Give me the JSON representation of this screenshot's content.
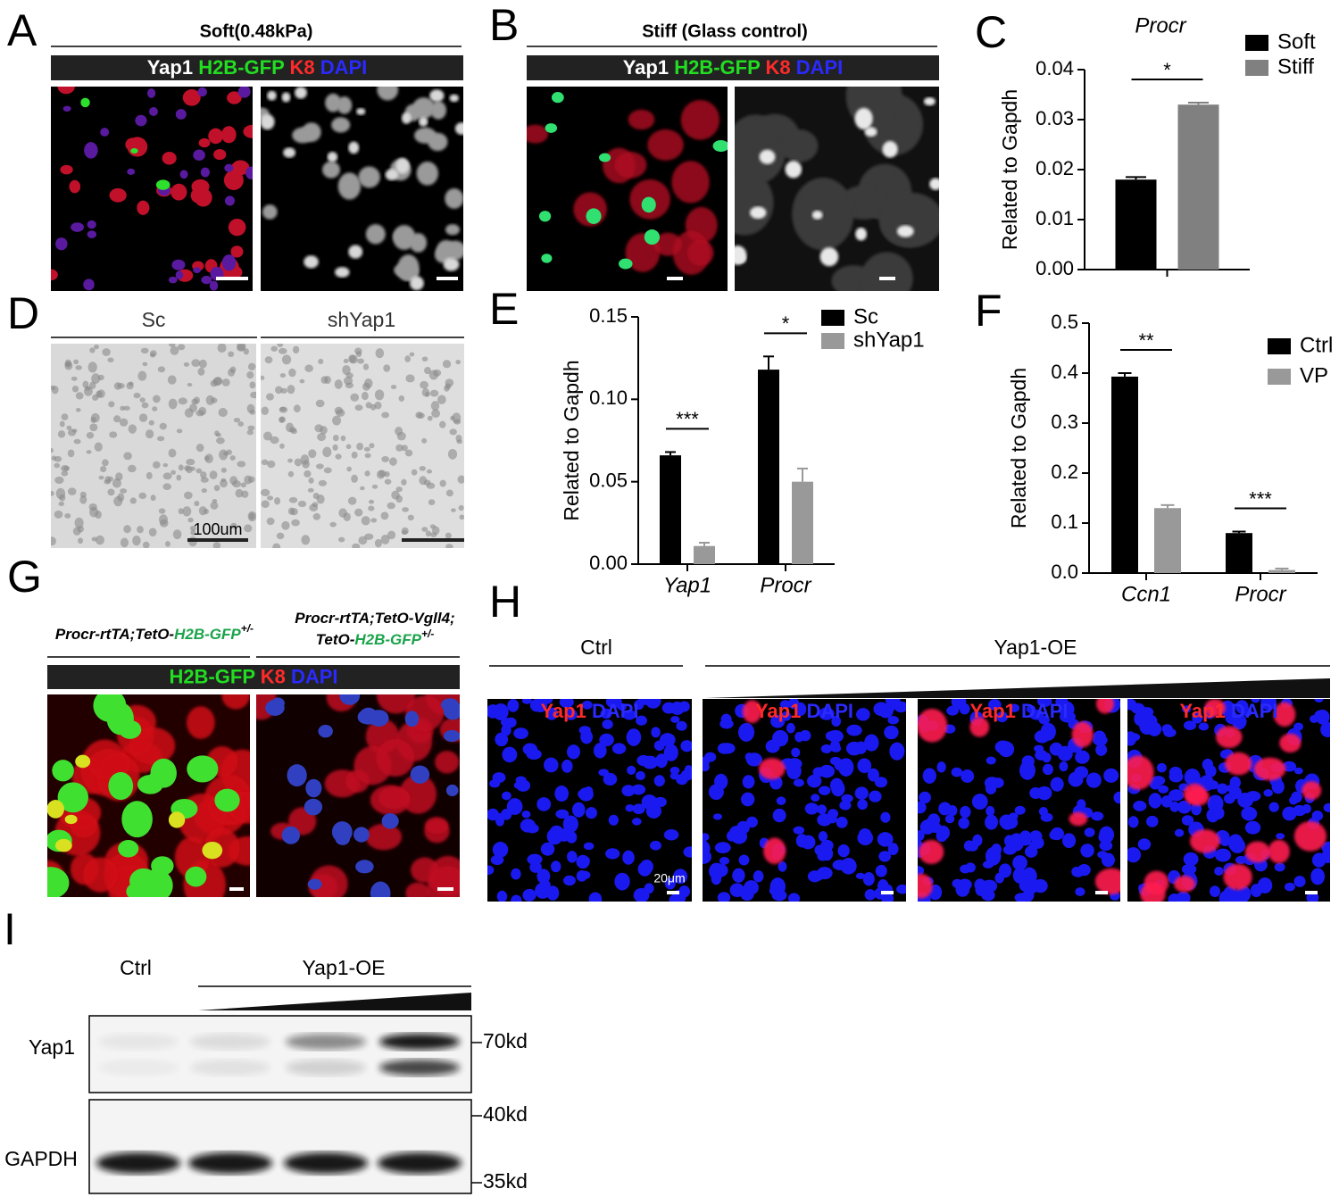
{
  "panel_labels": [
    "A",
    "B",
    "C",
    "D",
    "E",
    "F",
    "G",
    "H",
    "I"
  ],
  "panel_a": {
    "title": "Soft(0.48kPa)",
    "stains": [
      {
        "text": "Yap1",
        "color": "#ffffff"
      },
      {
        "text": "H2B-GFP",
        "color": "#22dd22"
      },
      {
        "text": "K8",
        "color": "#ff2a2a"
      },
      {
        "text": "DAPI",
        "color": "#2a2aff"
      }
    ]
  },
  "panel_b": {
    "title": "Stiff (Glass control)",
    "stains": [
      {
        "text": "Yap1",
        "color": "#ffffff"
      },
      {
        "text": "H2B-GFP",
        "color": "#22dd22"
      },
      {
        "text": "K8",
        "color": "#ff2a2a"
      },
      {
        "text": "DAPI",
        "color": "#2a2aff"
      }
    ]
  },
  "panel_d": {
    "labels": [
      "Sc",
      "shYap1"
    ],
    "scale_bar": "100um"
  },
  "panel_g": {
    "genotypes": [
      {
        "lines": [
          [
            {
              "text": "Procr-rtTA;TetO-",
              "color": "#000000"
            },
            {
              "text": "H2B-GFP",
              "color": "#1aa34a"
            },
            {
              "text": "+/-",
              "color": "#000000",
              "sup": true
            }
          ]
        ]
      },
      {
        "lines": [
          [
            {
              "text": "Procr-rtTA;TetO-Vgll4;",
              "color": "#000000"
            }
          ],
          [
            {
              "text": "TetO-",
              "color": "#000000"
            },
            {
              "text": "H2B-GFP",
              "color": "#1aa34a"
            },
            {
              "text": "+/-",
              "color": "#000000",
              "sup": true
            }
          ]
        ]
      }
    ],
    "stains": [
      {
        "text": "H2B-GFP",
        "color": "#22dd22"
      },
      {
        "text": "K8",
        "color": "#ff2a2a"
      },
      {
        "text": "DAPI",
        "color": "#2a2aff"
      }
    ]
  },
  "panel_h": {
    "groups": [
      "Ctrl",
      "Yap1-OE"
    ],
    "stains": [
      {
        "text": "Yap1",
        "color": "#ff2a2a"
      },
      {
        "text": "DAPI",
        "color": "#2a2aff"
      }
    ],
    "scale_bar": "20μm"
  },
  "panel_i": {
    "groups": [
      "Ctrl",
      "Yap1-OE"
    ],
    "rows": [
      "Yap1",
      "GAPDH"
    ],
    "markers": [
      "70kd",
      "40kd",
      "35kd"
    ]
  },
  "chart_data": [
    {
      "type": "bar",
      "title": "Procr",
      "y_label": "Related to Gapdh",
      "categories": [
        null
      ],
      "series": [
        {
          "name": "Soft",
          "color": "#000000",
          "values": [
            0.018
          ],
          "errors": [
            0.0005
          ]
        },
        {
          "name": "Stiff",
          "color": "#808080",
          "values": [
            0.033
          ],
          "errors": [
            0.0004
          ]
        }
      ],
      "significance": [
        "*"
      ],
      "ylim": [
        0,
        0.04
      ],
      "yticks": [
        {
          "value": 0,
          "label": "0.00"
        },
        0.01,
        0.02,
        0.03,
        0.04
      ]
    },
    {
      "type": "bar",
      "y_label": "Related to Gapdh",
      "categories": [
        "Yap1",
        "Procr"
      ],
      "series": [
        {
          "name": "Sc",
          "color": "#000000",
          "values": [
            0.066,
            0.118
          ],
          "errors": [
            0.002,
            0.008
          ]
        },
        {
          "name": "shYap1",
          "color": "#999999",
          "values": [
            0.011,
            0.05
          ],
          "errors": [
            0.002,
            0.008
          ]
        }
      ],
      "significance": [
        "***",
        "*"
      ],
      "ylim": [
        0,
        0.15
      ],
      "yticks": [
        {
          "value": 0,
          "label": "0.00"
        },
        0.05,
        {
          "value": 0.1,
          "label": "0.10"
        },
        0.15
      ]
    },
    {
      "type": "bar",
      "y_label": "Related to Gapdh",
      "categories": [
        "Ccn1",
        "Procr"
      ],
      "series": [
        {
          "name": "Ctrl",
          "color": "#000000",
          "values": [
            0.393,
            0.08
          ],
          "errors": [
            0.007,
            0.003
          ]
        },
        {
          "name": "VP",
          "color": "#999999",
          "values": [
            0.13,
            0.006
          ],
          "errors": [
            0.006,
            0.003
          ]
        }
      ],
      "significance": [
        "**",
        "***"
      ],
      "ylim": [
        0,
        0.5
      ],
      "yticks": [
        {
          "value": 0,
          "label": "0.0"
        },
        0.1,
        0.2,
        0.3,
        0.4,
        0.5
      ]
    }
  ]
}
